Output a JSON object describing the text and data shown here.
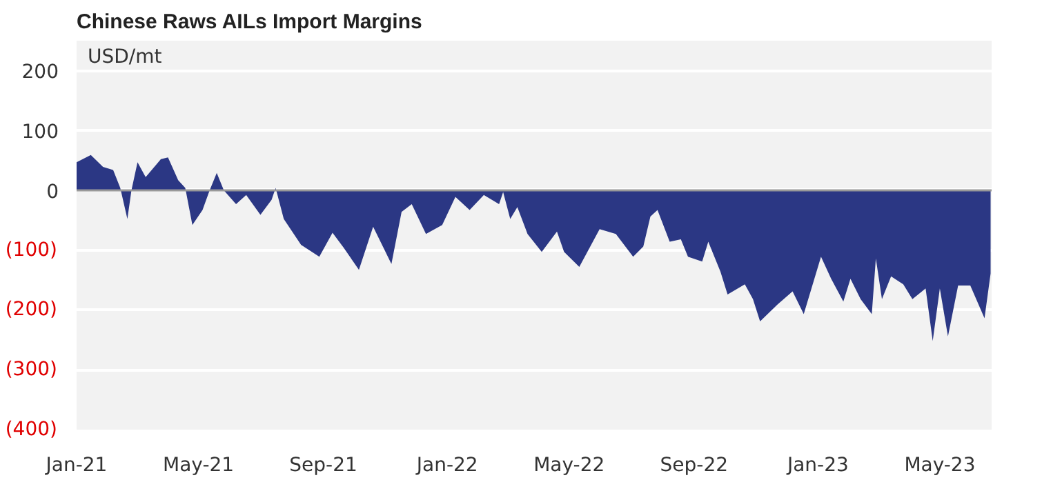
{
  "chart_data": {
    "type": "area",
    "title": "Chinese Raws AILs Import Margins",
    "ylabel": "USD/mt",
    "color": "#2b3784",
    "x": [
      "2021-01-01",
      "2021-01-15",
      "2021-01-27",
      "2021-02-06",
      "2021-02-13",
      "2021-02-20",
      "2021-02-24",
      "2021-03-02",
      "2021-03-10",
      "2021-03-25",
      "2021-04-01",
      "2021-04-11",
      "2021-04-18",
      "2021-04-25",
      "2021-05-05",
      "2021-05-12",
      "2021-05-19",
      "2021-05-26",
      "2021-06-07",
      "2021-06-17",
      "2021-07-01",
      "2021-07-12",
      "2021-07-16",
      "2021-07-24",
      "2021-08-10",
      "2021-08-28",
      "2021-09-10",
      "2021-09-21",
      "2021-10-06",
      "2021-10-20",
      "2021-11-07",
      "2021-11-17",
      "2021-11-27",
      "2021-12-11",
      "2021-12-27",
      "2022-01-09",
      "2022-01-23",
      "2022-02-06",
      "2022-02-21",
      "2022-02-25",
      "2022-03-04",
      "2022-03-11",
      "2022-03-21",
      "2022-04-04",
      "2022-04-19",
      "2022-04-26",
      "2022-05-11",
      "2022-05-31",
      "2022-06-16",
      "2022-07-03",
      "2022-07-13",
      "2022-07-20",
      "2022-07-27",
      "2022-08-08",
      "2022-08-19",
      "2022-08-26",
      "2022-09-09",
      "2022-09-15",
      "2022-09-27",
      "2022-10-04",
      "2022-10-21",
      "2022-10-29",
      "2022-11-05",
      "2022-11-22",
      "2022-12-07",
      "2022-12-18",
      "2023-01-04",
      "2023-01-14",
      "2023-01-26",
      "2023-02-02",
      "2023-02-12",
      "2023-02-23",
      "2023-02-27",
      "2023-03-05",
      "2023-03-14",
      "2023-03-26",
      "2023-04-04",
      "2023-04-17",
      "2023-04-24",
      "2023-05-01",
      "2023-05-09",
      "2023-05-19",
      "2023-05-31",
      "2023-06-14",
      "2023-06-20"
    ],
    "values": [
      47,
      59,
      39,
      34,
      4,
      -48,
      0,
      47,
      22,
      52,
      55,
      17,
      4,
      -58,
      -33,
      0,
      29,
      0,
      -23,
      -8,
      -41,
      -16,
      4,
      -48,
      -91,
      -111,
      -71,
      -96,
      -133,
      -61,
      -123,
      -36,
      -23,
      -73,
      -58,
      -11,
      -33,
      -8,
      -23,
      -3,
      -48,
      -28,
      -73,
      -103,
      -69,
      -103,
      -128,
      -65,
      -73,
      -111,
      -94,
      -44,
      -33,
      -86,
      -82,
      -111,
      -119,
      -86,
      -136,
      -174,
      -157,
      -182,
      -219,
      -191,
      -169,
      -207,
      -111,
      -148,
      -186,
      -148,
      -182,
      -207,
      -114,
      -182,
      -144,
      -157,
      -182,
      -164,
      -252,
      -164,
      -244,
      -159,
      -159,
      -214,
      -139
    ],
    "xlim": [
      "2021-01-01",
      "2023-06-21"
    ],
    "xticks": [
      {
        "value": "2021-01-01",
        "label": "Jan-21"
      },
      {
        "value": "2021-05-01",
        "label": "May-21"
      },
      {
        "value": "2021-09-01",
        "label": "Sep-21"
      },
      {
        "value": "2022-01-01",
        "label": "Jan-22"
      },
      {
        "value": "2022-05-01",
        "label": "May-22"
      },
      {
        "value": "2022-09-01",
        "label": "Sep-22"
      },
      {
        "value": "2023-01-01",
        "label": "Jan-23"
      },
      {
        "value": "2023-05-01",
        "label": "May-23"
      }
    ],
    "ylim": [
      -400,
      250
    ],
    "yticks": [
      {
        "value": -400,
        "label": "(400)"
      },
      {
        "value": -300,
        "label": "(300)"
      },
      {
        "value": -200,
        "label": "(200)"
      },
      {
        "value": -100,
        "label": "(100)"
      },
      0,
      100,
      200
    ],
    "grid": "y"
  }
}
